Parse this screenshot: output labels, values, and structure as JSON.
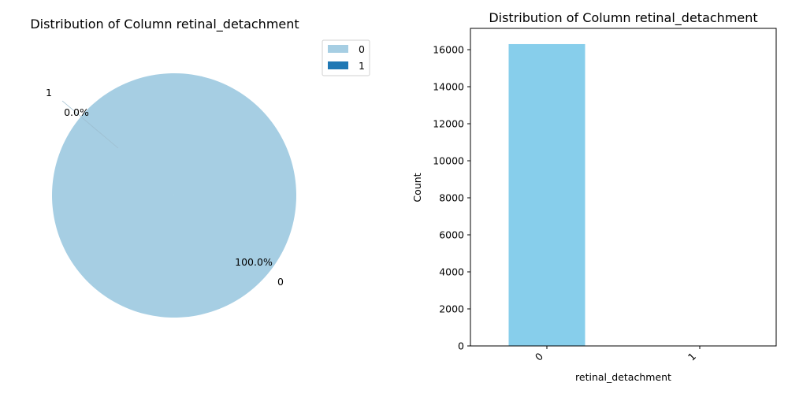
{
  "chart_data": [
    {
      "type": "pie",
      "title": "Distribution of Column retinal_detachment",
      "labels": [
        "0",
        "1"
      ],
      "values": [
        16300,
        1
      ],
      "percent_labels": [
        "100.0%",
        "0.0%"
      ],
      "colors": [
        "#a6cee3",
        "#1f78b4"
      ],
      "legend": {
        "placement": "top-right",
        "entries": [
          "0",
          "1"
        ]
      }
    },
    {
      "type": "bar",
      "title": "Distribution of Column retinal_detachment",
      "categories": [
        "0",
        "1"
      ],
      "values": [
        16300,
        1
      ],
      "xlabel": "retinal_detachment",
      "ylabel": "Count",
      "ylim": [
        0,
        17150
      ],
      "yticks": [
        "0",
        "2000",
        "4000",
        "6000",
        "8000",
        "10000",
        "12000",
        "14000",
        "16000"
      ],
      "bar_color": "#87ceeb",
      "grid": false
    }
  ]
}
